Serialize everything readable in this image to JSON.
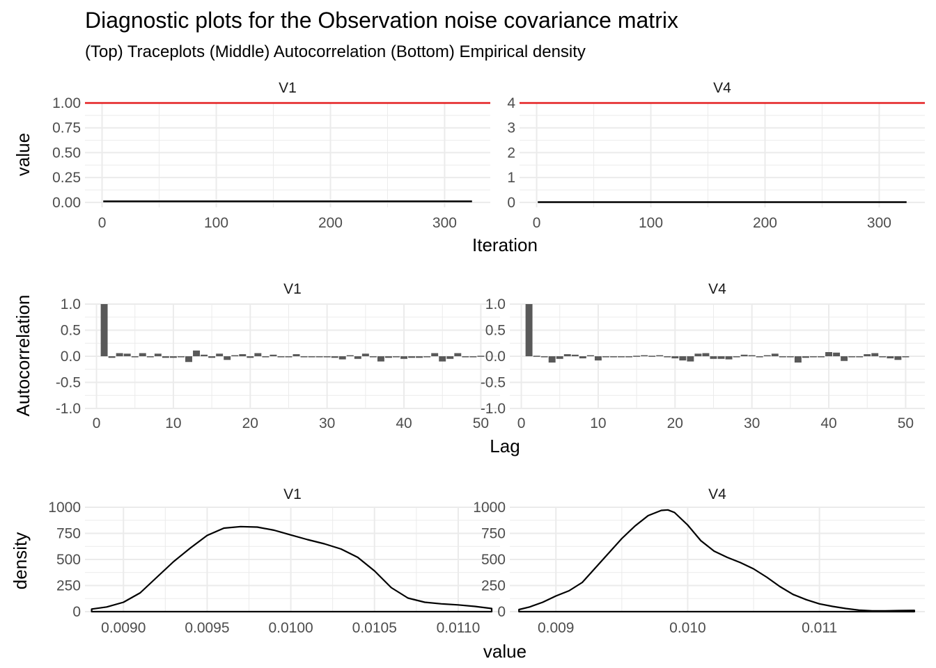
{
  "title": "Diagnostic plots for the Observation noise covariance matrix",
  "subtitle": "(Top) Traceplots (Middle) Autocorrelation (Bottom) Empirical density",
  "colors": {
    "grid": "#ebebeb",
    "line": "#000000",
    "reference": "#e41a1c",
    "bar": "#595959",
    "text": "#4d4d4d"
  },
  "chart_data": [
    {
      "type": "line",
      "row": "Traceplots",
      "xlabel": "Iteration",
      "ylabel": "value",
      "grid": true,
      "panels": [
        {
          "strip": "V1",
          "xlim": [
            -15,
            340
          ],
          "ylim": [
            -0.05,
            1.0
          ],
          "xticks": [
            0,
            100,
            200,
            300
          ],
          "xtick_labels": [
            "0",
            "100",
            "200",
            "300"
          ],
          "yticks": [
            0,
            0.25,
            0.5,
            0.75,
            1.0
          ],
          "ytick_labels": [
            "0.00",
            "0.25",
            "0.50",
            "0.75",
            "1.00"
          ],
          "hline": 1.0,
          "series_x_range": [
            1,
            324
          ],
          "series_level": 0.01
        },
        {
          "strip": "V4",
          "xlim": [
            -15,
            340
          ],
          "ylim": [
            -0.2,
            4.0
          ],
          "xticks": [
            0,
            100,
            200,
            300
          ],
          "xtick_labels": [
            "0",
            "100",
            "200",
            "300"
          ],
          "yticks": [
            0,
            1,
            2,
            3,
            4
          ],
          "ytick_labels": [
            "0",
            "1",
            "2",
            "3",
            "4"
          ],
          "hline": 4.0,
          "series_x_range": [
            1,
            324
          ],
          "series_level": 0.01
        }
      ]
    },
    {
      "type": "bar",
      "row": "Autocorrelation",
      "xlabel": "Lag",
      "ylabel": "Autocorrelation",
      "grid": true,
      "panels": [
        {
          "strip": "V1",
          "xlim": [
            -1.5,
            52.5
          ],
          "ylim": [
            -1.0,
            1.0
          ],
          "xticks": [
            0,
            10,
            20,
            30,
            40,
            50
          ],
          "xtick_labels": [
            "0",
            "10",
            "20",
            "30",
            "40",
            "50"
          ],
          "yticks": [
            -1.0,
            -0.5,
            0.0,
            0.5,
            1.0
          ],
          "ytick_labels": [
            "-1.0",
            "-0.5",
            "0.0",
            "0.5",
            "1.0"
          ],
          "lags": [
            1,
            2,
            3,
            4,
            5,
            6,
            7,
            8,
            9,
            10,
            11,
            12,
            13,
            14,
            15,
            16,
            17,
            18,
            19,
            20,
            21,
            22,
            23,
            24,
            25,
            26,
            27,
            28,
            29,
            30,
            31,
            32,
            33,
            34,
            35,
            36,
            37,
            38,
            39,
            40,
            41,
            42,
            43,
            44,
            45,
            46,
            47,
            48,
            49,
            50
          ],
          "values": [
            1.0,
            -0.03,
            0.06,
            0.05,
            -0.02,
            0.06,
            -0.02,
            0.05,
            -0.03,
            -0.03,
            -0.02,
            -0.11,
            0.11,
            0.03,
            -0.03,
            0.05,
            -0.07,
            0.02,
            0.04,
            -0.03,
            0.06,
            -0.02,
            0.03,
            -0.02,
            0.0,
            0.04,
            -0.02,
            0.0,
            0.0,
            -0.02,
            -0.03,
            -0.06,
            0.02,
            -0.05,
            0.05,
            0.0,
            -0.1,
            -0.03,
            -0.02,
            -0.05,
            -0.03,
            -0.03,
            0.0,
            0.06,
            -0.1,
            -0.05,
            0.06,
            -0.02,
            -0.02,
            0.01
          ]
        },
        {
          "strip": "V4",
          "xlim": [
            -1.5,
            52.5
          ],
          "ylim": [
            -1.0,
            1.0
          ],
          "xticks": [
            0,
            10,
            20,
            30,
            40,
            50
          ],
          "xtick_labels": [
            "0",
            "10",
            "20",
            "30",
            "40",
            "50"
          ],
          "yticks": [
            -1.0,
            -0.5,
            0.0,
            0.5,
            1.0
          ],
          "ytick_labels": [
            "-1.0",
            "-0.5",
            "0.0",
            "0.5",
            "1.0"
          ],
          "lags": [
            1,
            2,
            3,
            4,
            5,
            6,
            7,
            8,
            9,
            10,
            11,
            12,
            13,
            14,
            15,
            16,
            17,
            18,
            19,
            20,
            21,
            22,
            23,
            24,
            25,
            26,
            27,
            28,
            29,
            30,
            31,
            32,
            33,
            34,
            35,
            36,
            37,
            38,
            39,
            40,
            41,
            42,
            43,
            44,
            45,
            46,
            47,
            48,
            49,
            50
          ],
          "values": [
            1.0,
            0.01,
            -0.02,
            -0.12,
            -0.05,
            0.04,
            0.03,
            -0.04,
            0.02,
            -0.08,
            -0.01,
            -0.01,
            0.0,
            -0.01,
            0.01,
            0.02,
            0.01,
            0.02,
            -0.01,
            -0.04,
            -0.08,
            -0.1,
            0.05,
            0.06,
            -0.05,
            -0.05,
            -0.06,
            0.0,
            0.03,
            0.02,
            -0.02,
            0.02,
            0.05,
            -0.02,
            0.0,
            -0.12,
            -0.03,
            -0.02,
            -0.01,
            0.08,
            0.07,
            -0.09,
            -0.02,
            -0.02,
            0.04,
            0.06,
            -0.02,
            -0.04,
            -0.07,
            -0.02
          ]
        }
      ]
    },
    {
      "type": "area",
      "row": "Empirical density",
      "xlabel": "value",
      "ylabel": "density",
      "grid": true,
      "panels": [
        {
          "strip": "V1",
          "xlim": [
            0.00877,
            0.01125
          ],
          "ylim": [
            0,
            1000
          ],
          "xticks": [
            0.009,
            0.0095,
            0.01,
            0.0105,
            0.011
          ],
          "xtick_labels": [
            "0.0090",
            "0.0095",
            "0.0100",
            "0.0105",
            "0.0110"
          ],
          "yticks": [
            0,
            250,
            500,
            750,
            1000
          ],
          "ytick_labels": [
            "0",
            "250",
            "500",
            "750",
            "1000"
          ],
          "x": [
            0.00881,
            0.0089,
            0.009,
            0.0091,
            0.0092,
            0.0093,
            0.0094,
            0.0095,
            0.0096,
            0.0097,
            0.0098,
            0.0099,
            0.01,
            0.0101,
            0.0102,
            0.0103,
            0.0104,
            0.0105,
            0.0106,
            0.0107,
            0.0108,
            0.0109,
            0.011,
            0.0111,
            0.0112
          ],
          "y": [
            25,
            45,
            90,
            180,
            330,
            480,
            610,
            730,
            800,
            815,
            810,
            780,
            735,
            690,
            650,
            600,
            520,
            390,
            230,
            130,
            90,
            75,
            65,
            50,
            30
          ]
        },
        {
          "strip": "V4",
          "xlim": [
            0.00865,
            0.0118
          ],
          "ylim": [
            0,
            1000
          ],
          "xticks": [
            0.009,
            0.01,
            0.011
          ],
          "xtick_labels": [
            "0.009",
            "0.010",
            "0.011"
          ],
          "yticks": [
            0,
            250,
            500,
            750,
            1000
          ],
          "ytick_labels": [
            "0",
            "250",
            "500",
            "750",
            "1000"
          ],
          "x": [
            0.00872,
            0.0088,
            0.0089,
            0.009,
            0.0091,
            0.0092,
            0.0093,
            0.0094,
            0.0095,
            0.0096,
            0.0097,
            0.0098,
            0.00985,
            0.0099,
            0.01,
            0.0101,
            0.0102,
            0.0103,
            0.0104,
            0.0105,
            0.0106,
            0.0107,
            0.0108,
            0.0109,
            0.011,
            0.0111,
            0.0112,
            0.0113,
            0.0114,
            0.0115,
            0.0116,
            0.01172
          ],
          "y": [
            20,
            45,
            90,
            150,
            200,
            280,
            420,
            560,
            700,
            820,
            920,
            970,
            975,
            950,
            830,
            680,
            580,
            520,
            470,
            410,
            330,
            240,
            165,
            115,
            75,
            50,
            30,
            15,
            8,
            8,
            10,
            12
          ]
        }
      ]
    }
  ]
}
